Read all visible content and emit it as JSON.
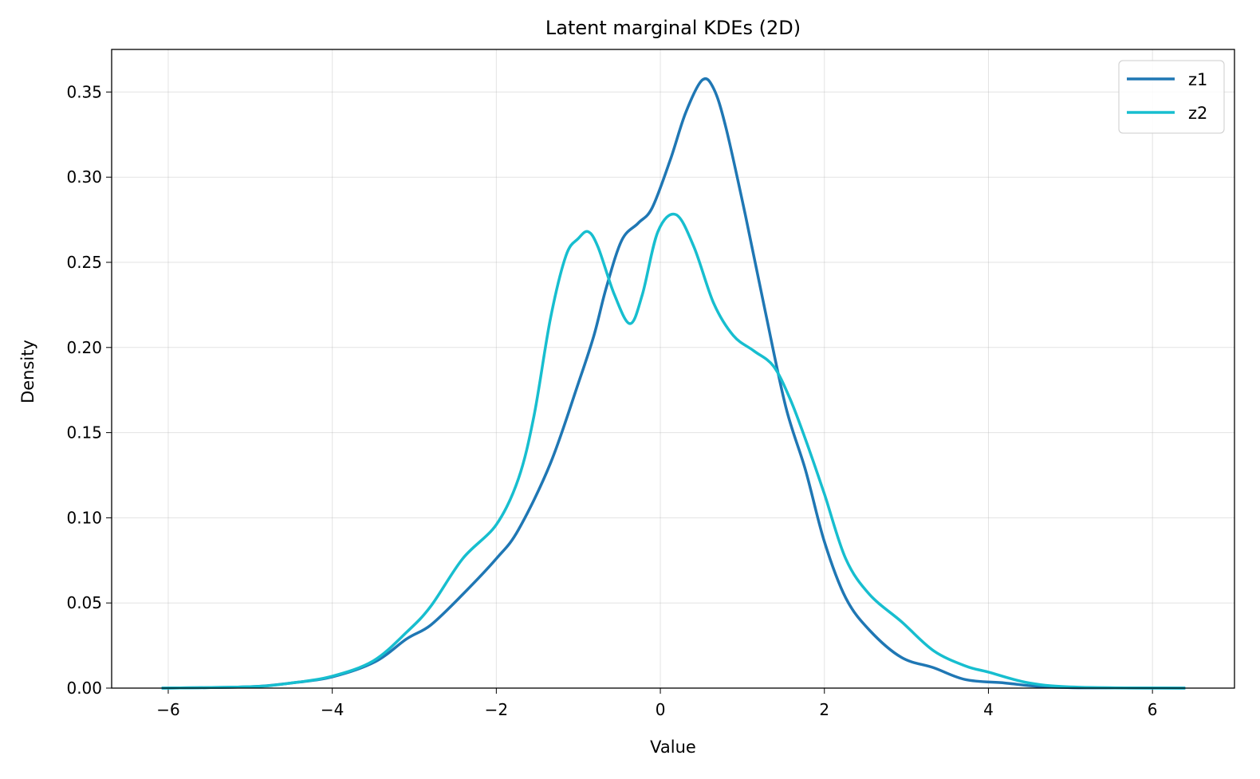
{
  "chart_data": {
    "type": "line",
    "title": "Latent marginal KDEs (2D)",
    "xlabel": "Value",
    "ylabel": "Density",
    "xlim": [
      -6.69,
      7.0
    ],
    "ylim": [
      0,
      0.375
    ],
    "xticks": [
      -6,
      -4,
      -2,
      0,
      2,
      4,
      6
    ],
    "xtick_labels": [
      "−6",
      "−4",
      "−2",
      "0",
      "2",
      "4",
      "6"
    ],
    "yticks": [
      0,
      0.05,
      0.1,
      0.15,
      0.2,
      0.25,
      0.3,
      0.35
    ],
    "ytick_labels": [
      "0.00",
      "0.05",
      "0.10",
      "0.15",
      "0.20",
      "0.25",
      "0.30",
      "0.35"
    ],
    "grid": true,
    "legend": "top-right",
    "series": [
      {
        "name": "z1",
        "color": "#1f77b4",
        "x": [
          -6.08,
          -5,
          -4.5,
          -4,
          -3.48,
          -3.09,
          -2.8,
          -2.41,
          -2,
          -1.73,
          -1.34,
          -1.0,
          -0.81,
          -0.66,
          -0.47,
          -0.27,
          -0.1,
          0.12,
          0.31,
          0.51,
          0.65,
          0.8,
          1.04,
          1.28,
          1.53,
          1.77,
          2,
          2.26,
          2.55,
          2.94,
          3.33,
          3.72,
          4.2,
          4.6,
          5.1,
          6.4
        ],
        "y": [
          0,
          0.0008,
          0.003,
          0.0066,
          0.0154,
          0.029,
          0.037,
          0.055,
          0.076,
          0.093,
          0.132,
          0.179,
          0.207,
          0.235,
          0.263,
          0.273,
          0.282,
          0.31,
          0.338,
          0.357,
          0.352,
          0.329,
          0.277,
          0.221,
          0.165,
          0.128,
          0.086,
          0.053,
          0.034,
          0.018,
          0.012,
          0.005,
          0.003,
          0.001,
          0.0002,
          0
        ]
      },
      {
        "name": "z2",
        "color": "#17becf",
        "x": [
          -6.08,
          -5,
          -4.5,
          -4,
          -3.5,
          -3.09,
          -2.8,
          -2.41,
          -2,
          -1.73,
          -1.54,
          -1.34,
          -1.15,
          -1.0,
          -0.88,
          -0.76,
          -0.56,
          -0.37,
          -0.22,
          -0.03,
          0.19,
          0.41,
          0.65,
          0.89,
          1.14,
          1.38,
          1.58,
          1.77,
          2,
          2.26,
          2.55,
          2.94,
          3.33,
          3.72,
          4,
          4.5,
          5.1,
          6.4
        ],
        "y": [
          0,
          0.0008,
          0.003,
          0.007,
          0.016,
          0.033,
          0.048,
          0.076,
          0.096,
          0.123,
          0.16,
          0.217,
          0.254,
          0.264,
          0.268,
          0.259,
          0.231,
          0.214,
          0.231,
          0.268,
          0.278,
          0.259,
          0.226,
          0.207,
          0.198,
          0.189,
          0.17,
          0.146,
          0.114,
          0.076,
          0.055,
          0.039,
          0.022,
          0.013,
          0.0094,
          0.003,
          0.0005,
          0
        ]
      }
    ]
  }
}
